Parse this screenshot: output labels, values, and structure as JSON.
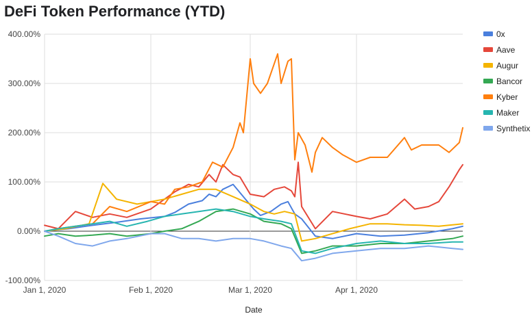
{
  "chart_data": {
    "type": "line",
    "title": "DeFi Token Performance (YTD)",
    "xlabel": "Date",
    "ylabel": "",
    "ylim": [
      -100,
      400
    ],
    "xlim": [
      "2020-01-01",
      "2020-05-02"
    ],
    "y_ticks": [
      "400.00%",
      "300.00%",
      "200.00%",
      "100.00%",
      "0.00%",
      "-100.00%"
    ],
    "y_tick_values": [
      400,
      300,
      200,
      100,
      0,
      -100
    ],
    "x_ticks": [
      "Jan 1, 2020",
      "Feb 1, 2020",
      "Mar 1, 2020",
      "Apr 1, 2020"
    ],
    "x_tick_values": [
      "2020-01-01",
      "2020-02-01",
      "2020-03-01",
      "2020-04-01"
    ],
    "grid": true,
    "legend_position": "right",
    "series": [
      {
        "name": "0x",
        "color": "#4a7fdd",
        "points": [
          [
            "2020-01-01",
            0
          ],
          [
            "2020-01-08",
            5
          ],
          [
            "2020-01-15",
            12
          ],
          [
            "2020-01-22",
            18
          ],
          [
            "2020-01-29",
            25
          ],
          [
            "2020-02-05",
            30
          ],
          [
            "2020-02-08",
            38
          ],
          [
            "2020-02-12",
            55
          ],
          [
            "2020-02-16",
            62
          ],
          [
            "2020-02-18",
            75
          ],
          [
            "2020-02-20",
            70
          ],
          [
            "2020-02-22",
            85
          ],
          [
            "2020-02-25",
            95
          ],
          [
            "2020-02-28",
            70
          ],
          [
            "2020-03-02",
            45
          ],
          [
            "2020-03-04",
            32
          ],
          [
            "2020-03-07",
            40
          ],
          [
            "2020-03-10",
            55
          ],
          [
            "2020-03-12",
            60
          ],
          [
            "2020-03-14",
            35
          ],
          [
            "2020-03-16",
            25
          ],
          [
            "2020-03-20",
            -10
          ],
          [
            "2020-03-25",
            -15
          ],
          [
            "2020-04-01",
            -5
          ],
          [
            "2020-04-08",
            -10
          ],
          [
            "2020-04-15",
            -8
          ],
          [
            "2020-04-22",
            -3
          ],
          [
            "2020-04-29",
            5
          ],
          [
            "2020-05-02",
            10
          ]
        ]
      },
      {
        "name": "Aave",
        "color": "#e5473a",
        "points": [
          [
            "2020-01-01",
            12
          ],
          [
            "2020-01-05",
            5
          ],
          [
            "2020-01-10",
            40
          ],
          [
            "2020-01-15",
            28
          ],
          [
            "2020-01-20",
            35
          ],
          [
            "2020-01-25",
            28
          ],
          [
            "2020-02-01",
            45
          ],
          [
            "2020-02-08",
            80
          ],
          [
            "2020-02-12",
            95
          ],
          [
            "2020-02-15",
            90
          ],
          [
            "2020-02-18",
            115
          ],
          [
            "2020-02-20",
            100
          ],
          [
            "2020-02-22",
            135
          ],
          [
            "2020-02-25",
            115
          ],
          [
            "2020-02-27",
            110
          ],
          [
            "2020-03-01",
            75
          ],
          [
            "2020-03-05",
            70
          ],
          [
            "2020-03-08",
            85
          ],
          [
            "2020-03-11",
            90
          ],
          [
            "2020-03-13",
            82
          ],
          [
            "2020-03-14",
            70
          ],
          [
            "2020-03-15",
            140
          ],
          [
            "2020-03-16",
            50
          ],
          [
            "2020-03-20",
            5
          ],
          [
            "2020-03-25",
            40
          ],
          [
            "2020-04-01",
            30
          ],
          [
            "2020-04-05",
            25
          ],
          [
            "2020-04-10",
            35
          ],
          [
            "2020-04-15",
            65
          ],
          [
            "2020-04-18",
            45
          ],
          [
            "2020-04-22",
            50
          ],
          [
            "2020-04-25",
            60
          ],
          [
            "2020-04-28",
            90
          ],
          [
            "2020-05-01",
            125
          ],
          [
            "2020-05-02",
            135
          ]
        ]
      },
      {
        "name": "Augur",
        "color": "#f4b400",
        "points": [
          [
            "2020-01-01",
            0
          ],
          [
            "2020-01-07",
            5
          ],
          [
            "2020-01-14",
            15
          ],
          [
            "2020-01-18",
            97
          ],
          [
            "2020-01-22",
            65
          ],
          [
            "2020-01-28",
            55
          ],
          [
            "2020-02-01",
            60
          ],
          [
            "2020-02-05",
            65
          ],
          [
            "2020-02-10",
            75
          ],
          [
            "2020-02-15",
            85
          ],
          [
            "2020-02-20",
            85
          ],
          [
            "2020-02-25",
            70
          ],
          [
            "2020-03-01",
            55
          ],
          [
            "2020-03-05",
            40
          ],
          [
            "2020-03-08",
            35
          ],
          [
            "2020-03-11",
            40
          ],
          [
            "2020-03-14",
            35
          ],
          [
            "2020-03-16",
            -20
          ],
          [
            "2020-03-20",
            -15
          ],
          [
            "2020-03-25",
            -5
          ],
          [
            "2020-03-30",
            5
          ],
          [
            "2020-04-05",
            15
          ],
          [
            "2020-04-10",
            15
          ],
          [
            "2020-04-15",
            13
          ],
          [
            "2020-04-20",
            12
          ],
          [
            "2020-04-25",
            10
          ],
          [
            "2020-05-02",
            15
          ]
        ]
      },
      {
        "name": "Bancor",
        "color": "#34a853",
        "points": [
          [
            "2020-01-01",
            -10
          ],
          [
            "2020-01-05",
            -5
          ],
          [
            "2020-01-10",
            -10
          ],
          [
            "2020-01-15",
            -8
          ],
          [
            "2020-01-20",
            -5
          ],
          [
            "2020-01-25",
            -10
          ],
          [
            "2020-02-01",
            -5
          ],
          [
            "2020-02-05",
            0
          ],
          [
            "2020-02-10",
            5
          ],
          [
            "2020-02-15",
            20
          ],
          [
            "2020-02-20",
            40
          ],
          [
            "2020-02-25",
            45
          ],
          [
            "2020-03-01",
            35
          ],
          [
            "2020-03-05",
            20
          ],
          [
            "2020-03-10",
            15
          ],
          [
            "2020-03-13",
            5
          ],
          [
            "2020-03-16",
            -45
          ],
          [
            "2020-03-20",
            -40
          ],
          [
            "2020-03-25",
            -30
          ],
          [
            "2020-04-01",
            -30
          ],
          [
            "2020-04-08",
            -25
          ],
          [
            "2020-04-15",
            -25
          ],
          [
            "2020-04-22",
            -20
          ],
          [
            "2020-04-29",
            -15
          ],
          [
            "2020-05-02",
            -10
          ]
        ]
      },
      {
        "name": "Kyber",
        "color": "#ff7f0e",
        "points": [
          [
            "2020-01-01",
            0
          ],
          [
            "2020-01-05",
            5
          ],
          [
            "2020-01-10",
            10
          ],
          [
            "2020-01-15",
            15
          ],
          [
            "2020-01-20",
            50
          ],
          [
            "2020-01-25",
            40
          ],
          [
            "2020-02-01",
            60
          ],
          [
            "2020-02-05",
            55
          ],
          [
            "2020-02-08",
            85
          ],
          [
            "2020-02-12",
            90
          ],
          [
            "2020-02-16",
            100
          ],
          [
            "2020-02-19",
            140
          ],
          [
            "2020-02-22",
            130
          ],
          [
            "2020-02-25",
            170
          ],
          [
            "2020-02-27",
            220
          ],
          [
            "2020-02-28",
            200
          ],
          [
            "2020-03-01",
            350
          ],
          [
            "2020-03-02",
            300
          ],
          [
            "2020-03-04",
            280
          ],
          [
            "2020-03-06",
            300
          ],
          [
            "2020-03-08",
            340
          ],
          [
            "2020-03-09",
            360
          ],
          [
            "2020-03-10",
            300
          ],
          [
            "2020-03-12",
            345
          ],
          [
            "2020-03-13",
            350
          ],
          [
            "2020-03-14",
            145
          ],
          [
            "2020-03-15",
            200
          ],
          [
            "2020-03-17",
            175
          ],
          [
            "2020-03-19",
            120
          ],
          [
            "2020-03-20",
            160
          ],
          [
            "2020-03-22",
            190
          ],
          [
            "2020-03-25",
            170
          ],
          [
            "2020-03-28",
            155
          ],
          [
            "2020-04-01",
            140
          ],
          [
            "2020-04-05",
            150
          ],
          [
            "2020-04-10",
            150
          ],
          [
            "2020-04-15",
            190
          ],
          [
            "2020-04-17",
            165
          ],
          [
            "2020-04-20",
            175
          ],
          [
            "2020-04-25",
            175
          ],
          [
            "2020-04-28",
            160
          ],
          [
            "2020-05-01",
            180
          ],
          [
            "2020-05-02",
            210
          ]
        ]
      },
      {
        "name": "Maker",
        "color": "#26b5b0",
        "points": [
          [
            "2020-01-01",
            0
          ],
          [
            "2020-01-05",
            5
          ],
          [
            "2020-01-10",
            10
          ],
          [
            "2020-01-15",
            15
          ],
          [
            "2020-01-20",
            20
          ],
          [
            "2020-01-25",
            10
          ],
          [
            "2020-01-31",
            20
          ],
          [
            "2020-02-05",
            30
          ],
          [
            "2020-02-10",
            35
          ],
          [
            "2020-02-15",
            40
          ],
          [
            "2020-02-20",
            45
          ],
          [
            "2020-02-25",
            40
          ],
          [
            "2020-03-01",
            30
          ],
          [
            "2020-03-05",
            25
          ],
          [
            "2020-03-10",
            20
          ],
          [
            "2020-03-13",
            15
          ],
          [
            "2020-03-16",
            -40
          ],
          [
            "2020-03-20",
            -45
          ],
          [
            "2020-03-25",
            -35
          ],
          [
            "2020-04-01",
            -25
          ],
          [
            "2020-04-08",
            -20
          ],
          [
            "2020-04-15",
            -25
          ],
          [
            "2020-04-22",
            -25
          ],
          [
            "2020-04-29",
            -22
          ],
          [
            "2020-05-02",
            -22
          ]
        ]
      },
      {
        "name": "Synthetix",
        "color": "#7fa7ec",
        "points": [
          [
            "2020-01-01",
            0
          ],
          [
            "2020-01-05",
            -10
          ],
          [
            "2020-01-10",
            -25
          ],
          [
            "2020-01-15",
            -30
          ],
          [
            "2020-01-20",
            -20
          ],
          [
            "2020-01-25",
            -15
          ],
          [
            "2020-02-01",
            -5
          ],
          [
            "2020-02-05",
            -5
          ],
          [
            "2020-02-10",
            -15
          ],
          [
            "2020-02-15",
            -15
          ],
          [
            "2020-02-20",
            -20
          ],
          [
            "2020-02-25",
            -15
          ],
          [
            "2020-03-01",
            -15
          ],
          [
            "2020-03-05",
            -20
          ],
          [
            "2020-03-10",
            -30
          ],
          [
            "2020-03-13",
            -35
          ],
          [
            "2020-03-16",
            -60
          ],
          [
            "2020-03-20",
            -55
          ],
          [
            "2020-03-25",
            -45
          ],
          [
            "2020-04-01",
            -40
          ],
          [
            "2020-04-08",
            -35
          ],
          [
            "2020-04-15",
            -35
          ],
          [
            "2020-04-22",
            -30
          ],
          [
            "2020-04-29",
            -35
          ],
          [
            "2020-05-02",
            -37
          ]
        ]
      }
    ]
  }
}
